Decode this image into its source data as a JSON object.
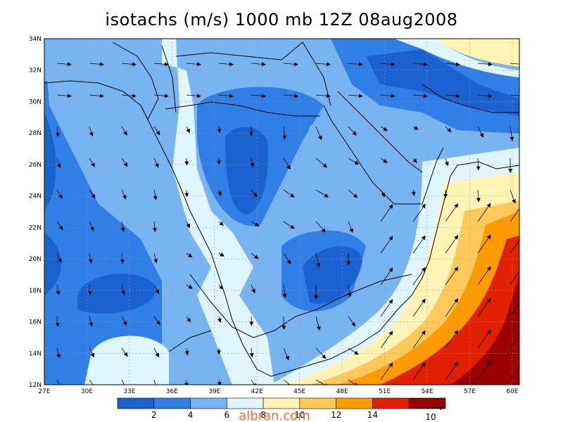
{
  "title": "isotachs (m/s) 1000 mb 12Z 08aug2008",
  "lat_ticks": [
    "34N",
    "32N",
    "30N",
    "28N",
    "26N",
    "24N",
    "22N",
    "20N",
    "18N",
    "16N",
    "14N",
    "12N"
  ],
  "lon_ticks": [
    "27E",
    "30E",
    "33E",
    "36E",
    "39E",
    "42E",
    "45E",
    "48E",
    "51E",
    "54E",
    "57E",
    "60E"
  ],
  "colorbar": {
    "colors": [
      "#1a62d0",
      "#2f7fe6",
      "#78b4f2",
      "#dff6ff",
      "#fff4b4",
      "#ffc95a",
      "#ff9a00",
      "#e02000",
      "#9a0000"
    ],
    "labels": [
      "2",
      "4",
      "6",
      "8",
      "10",
      "12",
      "14"
    ]
  },
  "vector_reference": "10",
  "watermark": "albran.com"
}
